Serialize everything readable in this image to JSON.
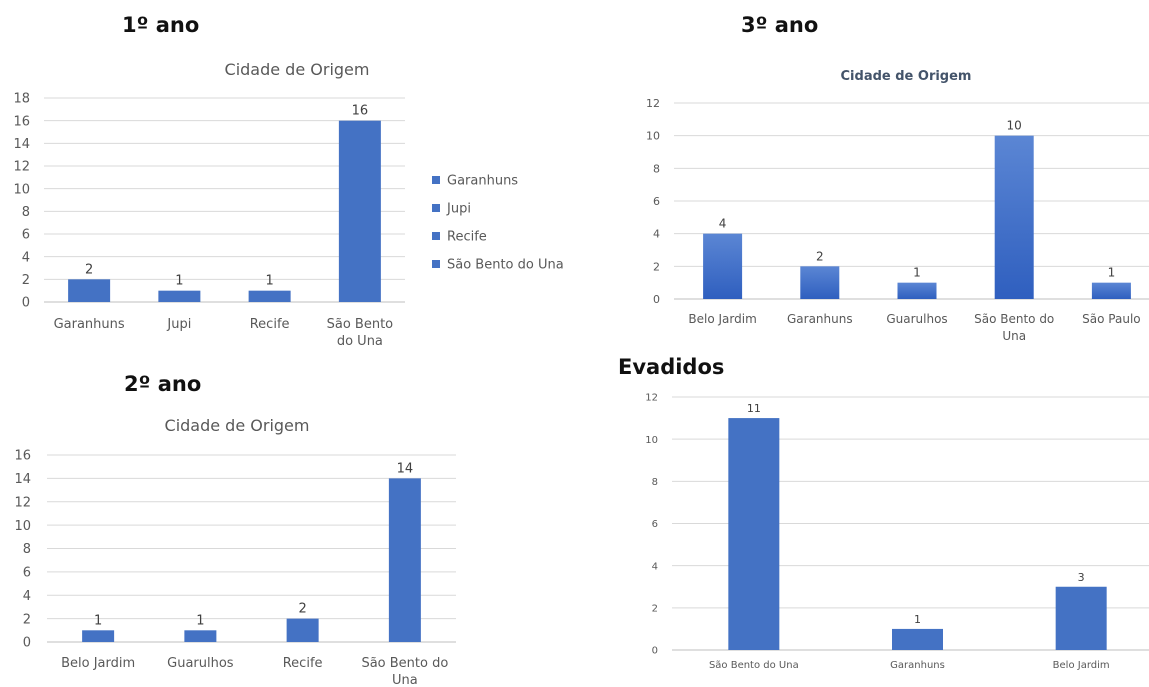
{
  "headings": {
    "first": "1º ano",
    "second": "2º ano",
    "third": "3º ano",
    "evadidos": "Evadidos"
  },
  "colors": {
    "bar": "#4472c4",
    "bar_dark": "#2f5fbf",
    "grid": "#d9d9d9",
    "text": "#595959"
  },
  "chart_data": [
    {
      "type": "bar",
      "title": "Cidade de Origem",
      "categories": [
        "Garanhuns",
        "Jupi",
        "Recife",
        "São Bento do Una"
      ],
      "values": [
        2,
        1,
        1,
        16
      ],
      "ylim": [
        0,
        18
      ],
      "yticks": [
        0,
        2,
        4,
        6,
        8,
        10,
        12,
        14,
        16,
        18
      ],
      "grid": true,
      "legend": {
        "position": "right",
        "entries": [
          "Garanhuns",
          "Jupi",
          "Recife",
          "São Bento do Una"
        ]
      }
    },
    {
      "type": "bar",
      "title": "Cidade de Origem",
      "categories": [
        "Belo Jardim",
        "Guarulhos",
        "Recife",
        "São Bento do Una"
      ],
      "values": [
        1,
        1,
        2,
        14
      ],
      "ylim": [
        0,
        16
      ],
      "yticks": [
        0,
        2,
        4,
        6,
        8,
        10,
        12,
        14,
        16
      ],
      "grid": true
    },
    {
      "type": "bar",
      "title": "Cidade de Origem",
      "categories": [
        "Belo Jardim",
        "Garanhuns",
        "Guarulhos",
        "São Bento do Una",
        "São Paulo"
      ],
      "values": [
        4,
        2,
        1,
        10,
        1
      ],
      "ylim": [
        0,
        12
      ],
      "yticks": [
        0,
        2,
        4,
        6,
        8,
        10,
        12
      ],
      "grid": true
    },
    {
      "type": "bar",
      "title": "",
      "categories": [
        "São Bento do Una",
        "Garanhuns",
        "Belo Jardim"
      ],
      "values": [
        11,
        1,
        3
      ],
      "ylim": [
        0,
        12
      ],
      "yticks": [
        0,
        2,
        4,
        6,
        8,
        10,
        12
      ],
      "grid": true
    }
  ]
}
